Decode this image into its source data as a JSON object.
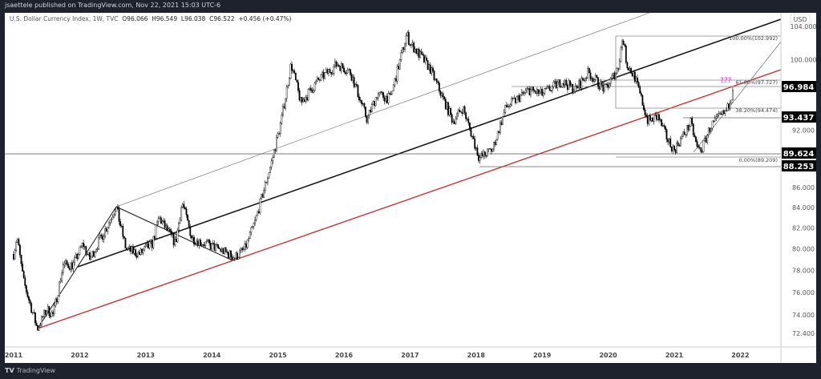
{
  "header": {
    "published": "jsaettele published on TradingView.com, Nov 22, 2021 15:03 UTC-6",
    "symbol": "U.S. Dollar Currency Index, 1W, TVC",
    "open": "O96.066",
    "high": "H96.549",
    "low": "L96.038",
    "close": "C96.522",
    "change": "+0.456 (+0.47%)"
  },
  "footer": {
    "brand": "TradingView",
    "logo_text": "TV"
  },
  "chart_data": {
    "type": "candlestick",
    "currency": "USD",
    "y_scale": "log",
    "ylim": [
      72.4,
      104.0
    ],
    "grid": false,
    "x_ticks": [
      "2011",
      "2012",
      "2013",
      "2014",
      "2015",
      "2016",
      "2017",
      "2018",
      "2019",
      "2020",
      "2021",
      "2022"
    ],
    "y_ticks": [
      "104.000",
      "100.000",
      "92.000",
      "86.000",
      "84.000",
      "82.000",
      "80.000",
      "78.000",
      "76.000",
      "74.000",
      "72.400"
    ],
    "price_labels": [
      "96.984",
      "93.437",
      "89.624",
      "88.253"
    ],
    "fib_levels": [
      {
        "label": "100.00%(102.992)",
        "value": 102.992
      },
      {
        "label": "61.80%(97.727)",
        "value": 97.727
      },
      {
        "label": "38.20%(94.474)",
        "value": 94.474
      },
      {
        "label": "0.00%(89.209)",
        "value": 89.209
      }
    ],
    "annotation": "???",
    "colors": {
      "up": "#ffffff",
      "down": "#000000",
      "red_trendline": "#c62828",
      "annotation": "#ff00ff",
      "label_bg": "#000000"
    },
    "approx_path": [
      [
        2011.0,
        79.5
      ],
      [
        2011.05,
        81.2
      ],
      [
        2011.15,
        77
      ],
      [
        2011.36,
        72.8
      ],
      [
        2011.5,
        74.5
      ],
      [
        2011.6,
        74
      ],
      [
        2011.75,
        78.5
      ],
      [
        2011.9,
        78.5
      ],
      [
        2012.05,
        80.5
      ],
      [
        2012.15,
        79
      ],
      [
        2012.4,
        82
      ],
      [
        2012.55,
        84.1
      ],
      [
        2012.7,
        80
      ],
      [
        2012.9,
        79.5
      ],
      [
        2013.1,
        80.5
      ],
      [
        2013.2,
        83
      ],
      [
        2013.45,
        80.5
      ],
      [
        2013.55,
        84.5
      ],
      [
        2013.7,
        81
      ],
      [
        2013.9,
        80.5
      ],
      [
        2014.1,
        80
      ],
      [
        2014.35,
        79.2
      ],
      [
        2014.5,
        80
      ],
      [
        2014.65,
        82.5
      ],
      [
        2014.9,
        88.5
      ],
      [
        2015.05,
        93
      ],
      [
        2015.2,
        99.5
      ],
      [
        2015.35,
        95
      ],
      [
        2015.6,
        97.5
      ],
      [
        2015.9,
        99.5
      ],
      [
        2016.1,
        98.5
      ],
      [
        2016.35,
        93.2
      ],
      [
        2016.5,
        96
      ],
      [
        2016.7,
        95.5
      ],
      [
        2016.95,
        103
      ],
      [
        2017.0,
        102
      ],
      [
        2017.15,
        100.5
      ],
      [
        2017.3,
        99
      ],
      [
        2017.65,
        93
      ],
      [
        2017.8,
        94.5
      ],
      [
        2018.05,
        89
      ],
      [
        2018.25,
        90
      ],
      [
        2018.45,
        94.5
      ],
      [
        2018.8,
        96.5
      ],
      [
        2019.0,
        96
      ],
      [
        2019.3,
        97.5
      ],
      [
        2019.5,
        96.5
      ],
      [
        2019.7,
        98.5
      ],
      [
        2019.95,
        96.5
      ],
      [
        2020.15,
        99
      ],
      [
        2020.22,
        102.8
      ],
      [
        2020.28,
        99.5
      ],
      [
        2020.4,
        98
      ],
      [
        2020.6,
        93
      ],
      [
        2020.75,
        93.5
      ],
      [
        2020.9,
        91
      ],
      [
        2021.0,
        89.9
      ],
      [
        2021.25,
        92.8
      ],
      [
        2021.35,
        90
      ],
      [
        2021.42,
        90
      ],
      [
        2021.55,
        92.5
      ],
      [
        2021.7,
        93.5
      ],
      [
        2021.8,
        94.2
      ],
      [
        2021.86,
        95.8
      ],
      [
        2021.89,
        96.5
      ]
    ]
  }
}
